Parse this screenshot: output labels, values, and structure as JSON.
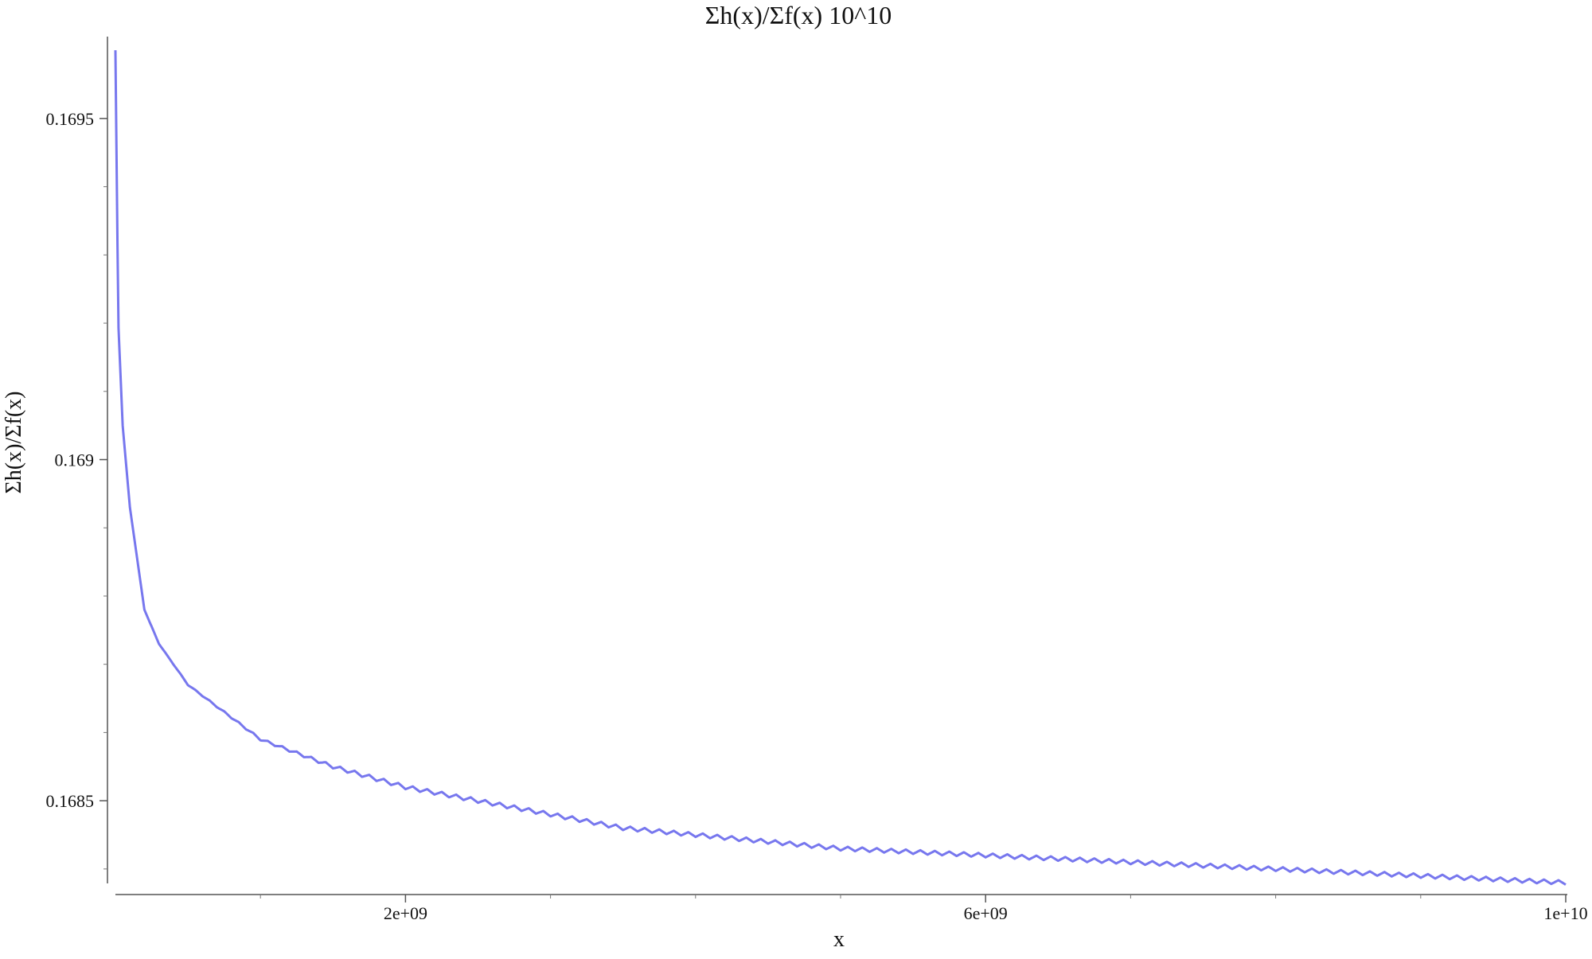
{
  "chart_data": {
    "type": "line",
    "title": "Σh(x)/Σf(x) 10^10",
    "xlabel": "x",
    "ylabel": "Σh(x)/Σf(x)",
    "xlim": [
      0,
      10000000000
    ],
    "ylim": [
      0.16838,
      0.16962
    ],
    "x_ticks": [
      {
        "value": 2000000000,
        "label": "2e+09"
      },
      {
        "value": 6000000000,
        "label": "6e+09"
      },
      {
        "value": 10000000000,
        "label": "1e+10"
      }
    ],
    "x_minor_ticks": [
      1000000000,
      3000000000,
      4000000000,
      5000000000,
      7000000000,
      8000000000,
      9000000000
    ],
    "y_ticks": [
      {
        "value": 0.1695,
        "label": "0.1695"
      },
      {
        "value": 0.169,
        "label": "0.169"
      },
      {
        "value": 0.1685,
        "label": "0.1685"
      }
    ],
    "y_minor_ticks": [
      0.1684,
      0.1686,
      0.1687,
      0.1688,
      0.1689,
      0.1691,
      0.1692,
      0.1693,
      0.1694
    ],
    "grid": false,
    "legend": "none",
    "series": [
      {
        "color": "#7777ee",
        "x": [
          0,
          20000000,
          50000000,
          100000000,
          200000000,
          300000000,
          500000000,
          750000000,
          1000000000,
          1500000000,
          2000000000,
          2500000000,
          3000000000,
          3500000000,
          4000000000,
          5000000000,
          6000000000,
          7000000000,
          8000000000,
          9000000000,
          10000000000
        ],
        "y": [
          0.1696,
          0.1692,
          0.16905,
          0.16893,
          0.16878,
          0.16873,
          0.16867,
          0.16863,
          0.16859,
          0.16855,
          0.16852,
          0.1685,
          0.16848,
          0.16846,
          0.16845,
          0.16843,
          0.16842,
          0.16841,
          0.1684,
          0.16839,
          0.16838
        ],
        "oscillation_amplitude": 6e-06
      }
    ]
  }
}
